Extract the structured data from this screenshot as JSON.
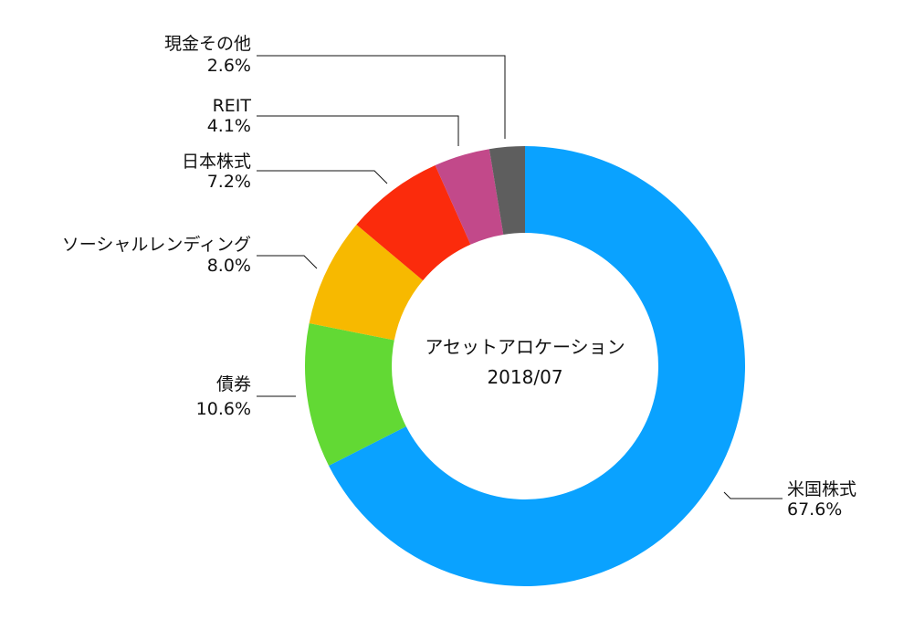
{
  "chart_data": {
    "type": "pie",
    "donut": true,
    "title": "アセットアロケーション",
    "subtitle": "2018/07",
    "unit": "%",
    "start_angle": "12 o'clock",
    "direction": "clockwise",
    "slices": [
      {
        "label": "米国株式",
        "value": 67.6,
        "value_text": "67.6%",
        "color": "#0aa2ff"
      },
      {
        "label": "債券",
        "value": 10.6,
        "value_text": "10.6%",
        "color": "#62d934"
      },
      {
        "label": "ソーシャルレンディング",
        "value": 8.0,
        "value_text": "8.0%",
        "color": "#f7b900"
      },
      {
        "label": "日本株式",
        "value": 7.2,
        "value_text": "7.2%",
        "color": "#fb2b0c"
      },
      {
        "label": "REIT",
        "value": 4.1,
        "value_text": "4.1%",
        "color": "#c2498a"
      },
      {
        "label": "現金その他",
        "value": 2.6,
        "value_text": "2.6%",
        "color": "#5e5e5e"
      }
    ]
  }
}
